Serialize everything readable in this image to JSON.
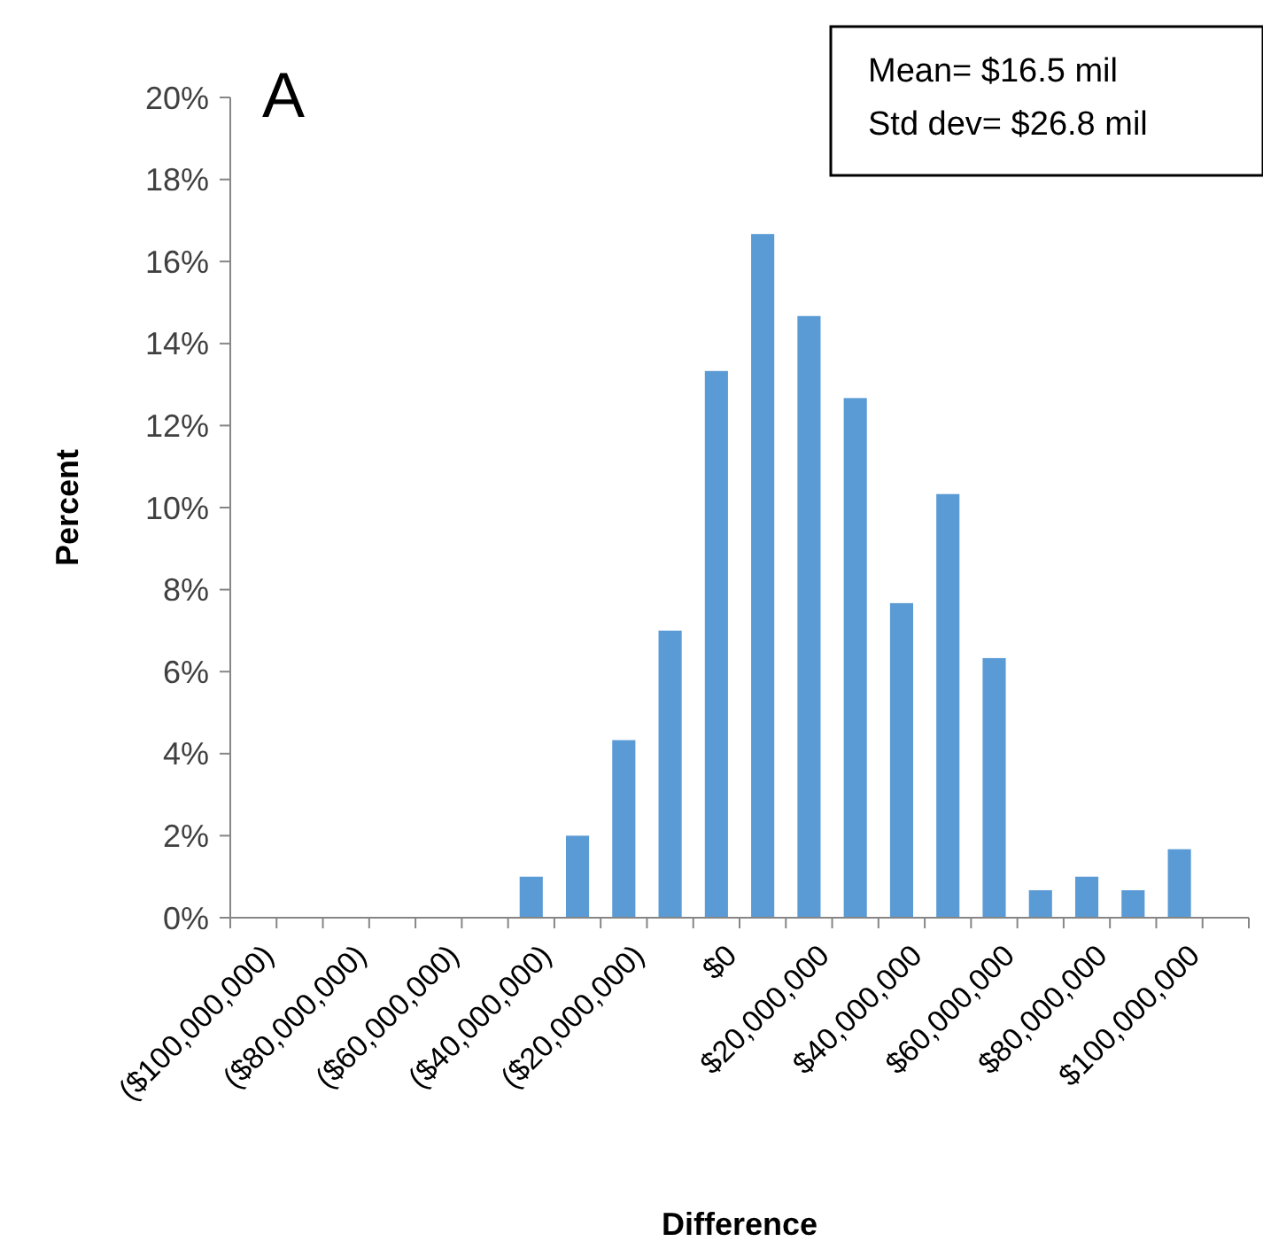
{
  "chart_data": {
    "type": "bar",
    "xlabel": "Difference",
    "ylabel": "Percent",
    "annotations": [
      "A",
      "Mean= $16.5 mil",
      "Std dev= $26.8 mil"
    ],
    "categories": [
      "($100,000,000)",
      null,
      "($80,000,000)",
      null,
      "($60,000,000)",
      null,
      "($40,000,000)",
      null,
      "($20,000,000)",
      null,
      "$0",
      null,
      "$20,000,000",
      null,
      "$40,000,000",
      null,
      "$60,000,000",
      null,
      "$80,000,000",
      null,
      "$100,000,000",
      null
    ],
    "values": [
      0,
      0,
      0,
      0,
      0,
      0,
      1.0,
      2.0,
      4.33,
      7.0,
      13.33,
      16.67,
      14.67,
      12.67,
      7.67,
      10.33,
      6.33,
      0.67,
      1.0,
      0.67,
      1.67,
      0
    ],
    "color": "#5b9bd5",
    "ylim": [
      0,
      20
    ],
    "yticks": [
      {
        "value": 0,
        "label": "0%"
      },
      {
        "value": 2,
        "label": "2%"
      },
      {
        "value": 4,
        "label": "4%"
      },
      {
        "value": 6,
        "label": "6%"
      },
      {
        "value": 8,
        "label": "8%"
      },
      {
        "value": 10,
        "label": "10%"
      },
      {
        "value": 12,
        "label": "12%"
      },
      {
        "value": 14,
        "label": "14%"
      },
      {
        "value": 16,
        "label": "16%"
      },
      {
        "value": 18,
        "label": "18%"
      },
      {
        "value": 20,
        "label": "20%"
      }
    ],
    "grid": false
  }
}
